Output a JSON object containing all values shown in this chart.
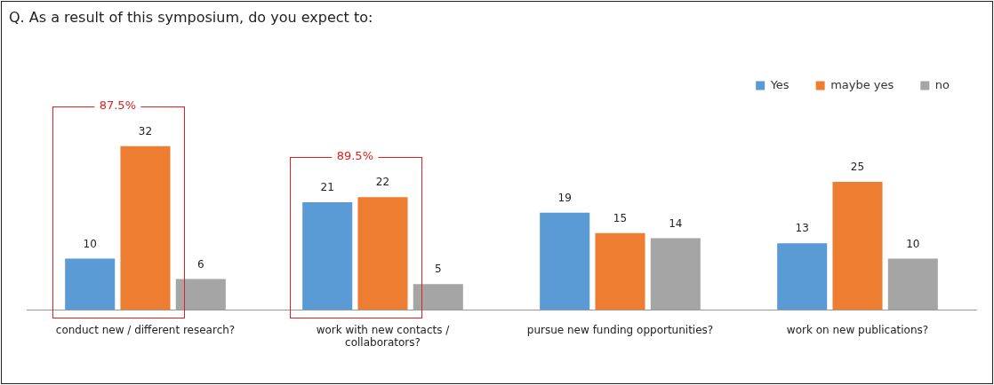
{
  "chart_data": {
    "type": "bar",
    "title": "Q. As a result of this symposium, do you expect to:",
    "categories": [
      "conduct new / different research?",
      "work with new contacts / collaborators?",
      "pursue new funding opportunities?",
      "work on new publications?"
    ],
    "series": [
      {
        "name": "Yes",
        "color": "#5b9bd5",
        "values": [
          10,
          21,
          19,
          13
        ]
      },
      {
        "name": "maybe yes",
        "color": "#ed7d31",
        "values": [
          32,
          22,
          15,
          25
        ]
      },
      {
        "name": "no",
        "color": "#a5a5a5",
        "values": [
          6,
          5,
          14,
          10
        ]
      }
    ],
    "data_labels": true,
    "legend": "top right",
    "grid": false,
    "annotations": [
      "87.5%",
      "89.5%"
    ]
  }
}
